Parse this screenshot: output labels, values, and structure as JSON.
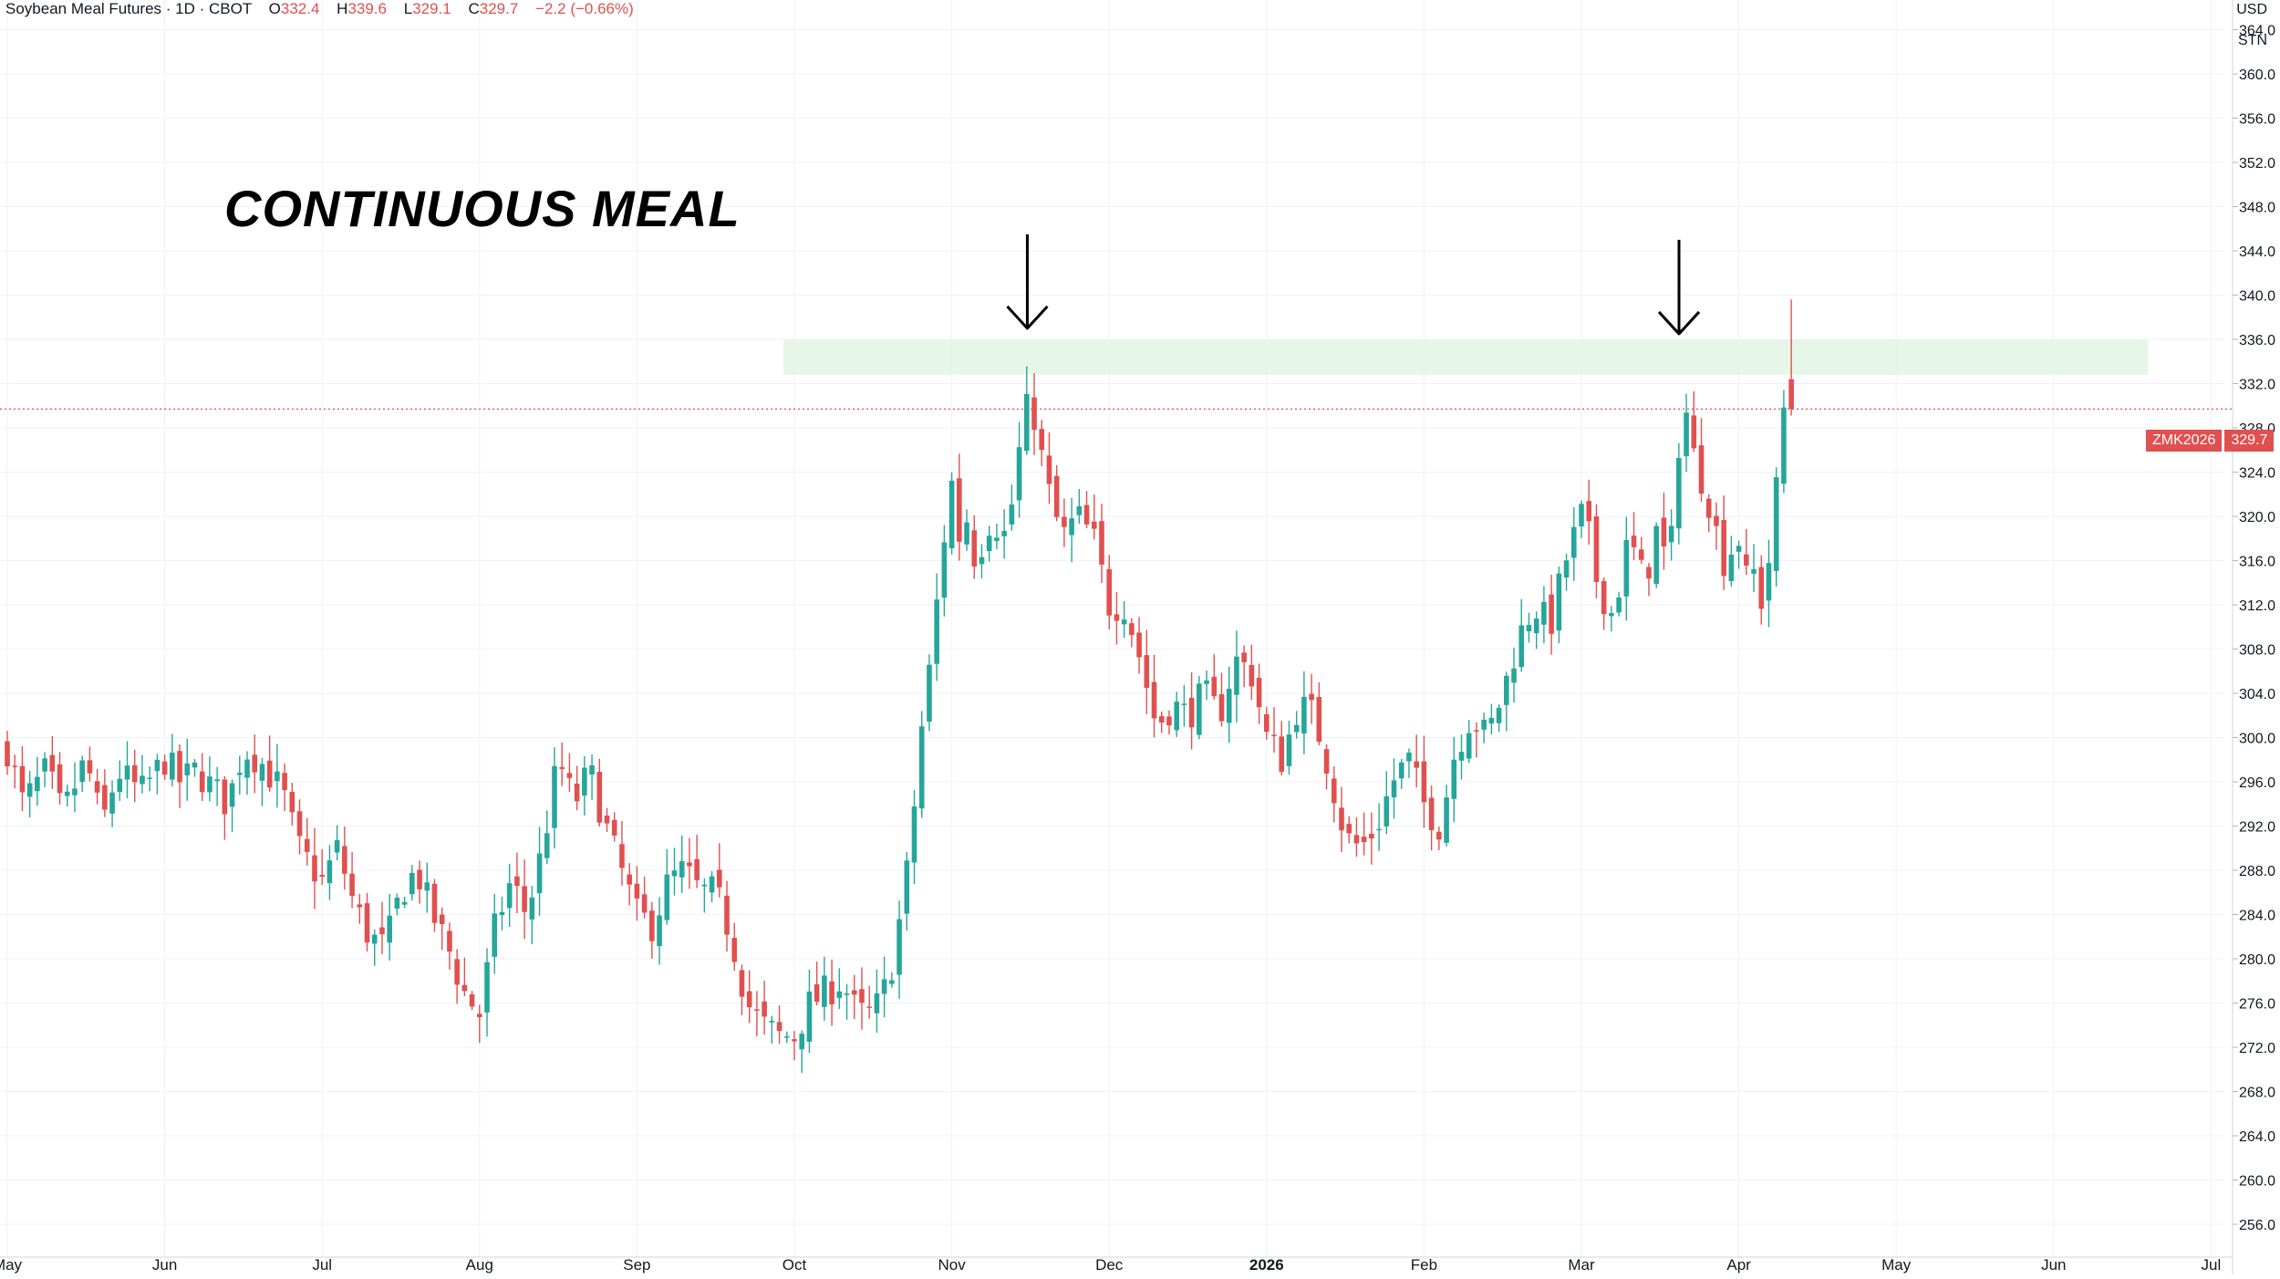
{
  "header": {
    "symbol": "Soybean Meal Futures · 1D · CBOT",
    "o_label": "O",
    "o_value": "332.4",
    "h_label": "H",
    "h_value": "339.6",
    "l_label": "L",
    "l_value": "329.1",
    "c_label": "C",
    "c_value": "329.7",
    "change": "−2.2 (−0.66%)"
  },
  "currency_label": "USD",
  "unit_label": "STN",
  "price_tag": {
    "symbol": "ZMK2026",
    "price": "329.7"
  },
  "colors": {
    "up": "#26a69a",
    "down": "#e0504f",
    "zone": "#e2f4e4",
    "grid": "#f0f2f5"
  },
  "chart_data": {
    "type": "candlestick",
    "title": "CONTINUOUS MEAL",
    "ylim": [
      254,
      366
    ],
    "y_ticks": [
      "364.0",
      "360.0",
      "356.0",
      "352.0",
      "348.0",
      "344.0",
      "340.0",
      "336.0",
      "332.0",
      "328.0",
      "324.0",
      "320.0",
      "316.0",
      "312.0",
      "308.0",
      "304.0",
      "300.0",
      "296.0",
      "292.0",
      "288.0",
      "284.0",
      "280.0",
      "276.0",
      "272.0",
      "268.0",
      "264.0",
      "260.0",
      "256.0"
    ],
    "x_labels": [
      "May",
      "Jun",
      "Jul",
      "Aug",
      "Sep",
      "Oct",
      "Nov",
      "Dec",
      "2026",
      "Feb",
      "Mar",
      "Apr",
      "May",
      "Jun",
      "Jul"
    ],
    "x_label_pos": [
      0,
      1,
      2,
      3,
      4,
      5,
      6,
      7,
      8,
      9,
      10,
      11,
      12,
      13,
      14
    ],
    "last_price": 329.7,
    "resistance_zone": {
      "from": 332.8,
      "to": 336.0,
      "x_start": 5,
      "x_end": 13.6
    },
    "annotations": [
      {
        "type": "arrow-down",
        "x": 6.48,
        "y_top": 345.5,
        "y_bottom": 337.0
      },
      {
        "type": "arrow-down",
        "x": 10.62,
        "y_top": 345.0,
        "y_bottom": 336.5
      }
    ],
    "anchors": [
      [
        0.0,
        299
      ],
      [
        0.1,
        294
      ],
      [
        0.25,
        297
      ],
      [
        0.35,
        293
      ],
      [
        0.5,
        298
      ],
      [
        0.6,
        292
      ],
      [
        0.7,
        297
      ],
      [
        0.85,
        295
      ],
      [
        1.0,
        298
      ],
      [
        1.1,
        296
      ],
      [
        1.2,
        297
      ],
      [
        1.4,
        294
      ],
      [
        1.5,
        299
      ],
      [
        1.6,
        298
      ],
      [
        1.75,
        295
      ],
      [
        1.85,
        290
      ],
      [
        2.0,
        287
      ],
      [
        2.1,
        290
      ],
      [
        2.2,
        285
      ],
      [
        2.3,
        282
      ],
      [
        2.4,
        281
      ],
      [
        2.5,
        286
      ],
      [
        2.6,
        288
      ],
      [
        2.7,
        284
      ],
      [
        2.8,
        281
      ],
      [
        2.9,
        277
      ],
      [
        3.0,
        275
      ],
      [
        3.1,
        283
      ],
      [
        3.2,
        287
      ],
      [
        3.3,
        284
      ],
      [
        3.4,
        290
      ],
      [
        3.5,
        298
      ],
      [
        3.6,
        294
      ],
      [
        3.7,
        297
      ],
      [
        3.8,
        292
      ],
      [
        3.9,
        288
      ],
      [
        4.0,
        284
      ],
      [
        4.1,
        283
      ],
      [
        4.2,
        287
      ],
      [
        4.3,
        288
      ],
      [
        4.4,
        286
      ],
      [
        4.5,
        286
      ],
      [
        4.6,
        282
      ],
      [
        4.7,
        276
      ],
      [
        4.8,
        274
      ],
      [
        4.9,
        273
      ],
      [
        5.0,
        273
      ],
      [
        5.1,
        276
      ],
      [
        5.2,
        277
      ],
      [
        5.3,
        278
      ],
      [
        5.4,
        275
      ],
      [
        5.5,
        275
      ],
      [
        5.6,
        278
      ],
      [
        5.65,
        282
      ],
      [
        5.7,
        286
      ],
      [
        5.75,
        292
      ],
      [
        5.8,
        300
      ],
      [
        5.85,
        305
      ],
      [
        5.95,
        318
      ],
      [
        6.0,
        323
      ],
      [
        6.05,
        318
      ],
      [
        6.1,
        320
      ],
      [
        6.15,
        316
      ],
      [
        6.25,
        320
      ],
      [
        6.35,
        318
      ],
      [
        6.45,
        328
      ],
      [
        6.5,
        331
      ],
      [
        6.55,
        327
      ],
      [
        6.6,
        323
      ],
      [
        6.7,
        318
      ],
      [
        6.8,
        320
      ],
      [
        6.9,
        318
      ],
      [
        7.0,
        312
      ],
      [
        7.1,
        312
      ],
      [
        7.2,
        307
      ],
      [
        7.3,
        301
      ],
      [
        7.4,
        303
      ],
      [
        7.5,
        302
      ],
      [
        7.6,
        304
      ],
      [
        7.7,
        302
      ],
      [
        7.8,
        307
      ],
      [
        7.9,
        306
      ],
      [
        8.0,
        300
      ],
      [
        8.1,
        298
      ],
      [
        8.2,
        303
      ],
      [
        8.3,
        302
      ],
      [
        8.4,
        297
      ],
      [
        8.5,
        291
      ],
      [
        8.6,
        290
      ],
      [
        8.7,
        292
      ],
      [
        8.8,
        296
      ],
      [
        8.9,
        298
      ],
      [
        9.0,
        294
      ],
      [
        9.05,
        293
      ],
      [
        9.1,
        292
      ],
      [
        9.2,
        299
      ],
      [
        9.3,
        302
      ],
      [
        9.4,
        300
      ],
      [
        9.5,
        304
      ],
      [
        9.6,
        309
      ],
      [
        9.7,
        312
      ],
      [
        9.8,
        310
      ],
      [
        9.9,
        316
      ],
      [
        10.0,
        320
      ],
      [
        10.05,
        318
      ],
      [
        10.1,
        314
      ],
      [
        10.2,
        311
      ],
      [
        10.3,
        318
      ],
      [
        10.4,
        314
      ],
      [
        10.5,
        320
      ],
      [
        10.55,
        313
      ],
      [
        10.6,
        324
      ],
      [
        10.65,
        331
      ],
      [
        10.7,
        326
      ],
      [
        10.8,
        322
      ],
      [
        10.9,
        316
      ],
      [
        11.0,
        318
      ],
      [
        11.05,
        314
      ],
      [
        11.1,
        315
      ],
      [
        11.15,
        312
      ],
      [
        11.2,
        317
      ],
      [
        11.25,
        324
      ],
      [
        11.3,
        332
      ],
      [
        11.35,
        329.7
      ]
    ]
  }
}
